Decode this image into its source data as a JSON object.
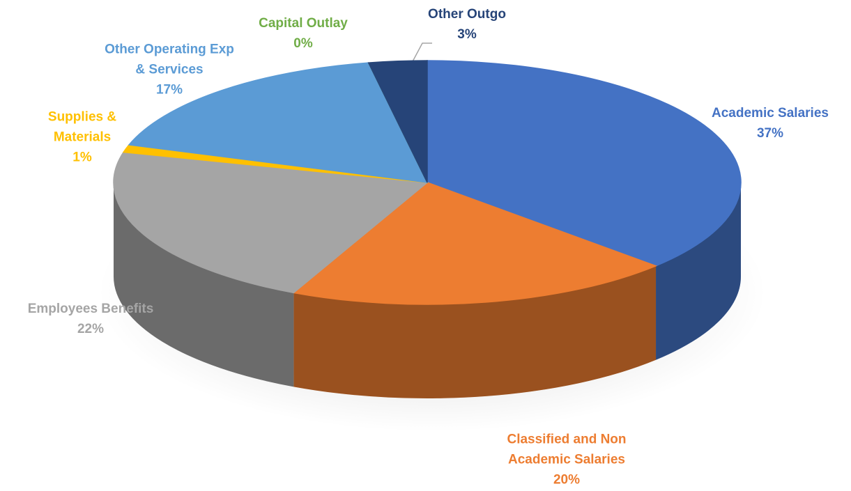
{
  "chart_data": {
    "type": "pie",
    "categories": [
      "Academic Salaries",
      "Classified and Non Academic Salaries",
      "Employees Benefits",
      "Supplies & Materials",
      "Other Operating Exp & Services",
      "Capital Outlay",
      "Other Outgo"
    ],
    "values": [
      37,
      20,
      22,
      1,
      17,
      0,
      3
    ],
    "value_labels": [
      "37%",
      "20%",
      "22%",
      "1%",
      "17%",
      "0%",
      "3%"
    ],
    "colors": [
      "#4472c4",
      "#ed7d31",
      "#a5a5a5",
      "#ffc000",
      "#5b9bd5",
      "#70ad47",
      "#264478"
    ]
  }
}
